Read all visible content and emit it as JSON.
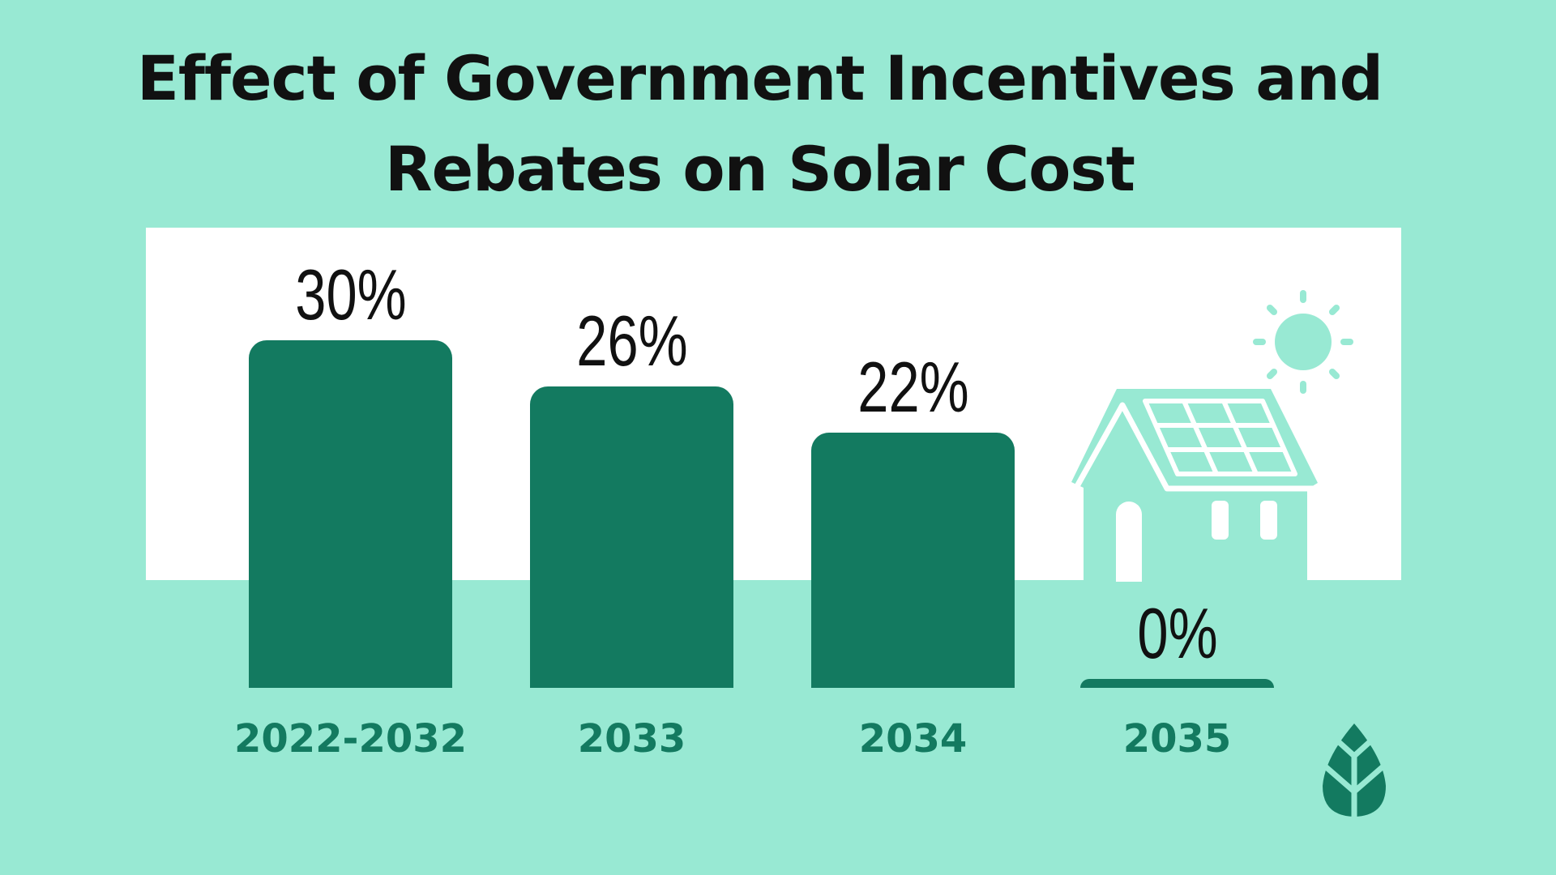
{
  "chart_data": {
    "type": "bar",
    "title": "Effect of Government Incentives and Rebates on Solar Cost",
    "title_lines": [
      "Effect of Government Incentives and",
      "Rebates on Solar Cost"
    ],
    "categories": [
      "2022-2032",
      "2033",
      "2034",
      "2035"
    ],
    "values": [
      30,
      26,
      22,
      0
    ],
    "data_labels": [
      "30%",
      "26%",
      "22%",
      "0%"
    ],
    "xlabel": "",
    "ylabel": "",
    "ylim": [
      0,
      30
    ],
    "grid": false,
    "colors": {
      "background": "#98e9d3",
      "bar": "#137a60",
      "panel": "#ffffff",
      "category_text": "#137a60"
    }
  },
  "icons": [
    "solar-house-icon",
    "sun-icon",
    "leaf-logo-icon"
  ]
}
